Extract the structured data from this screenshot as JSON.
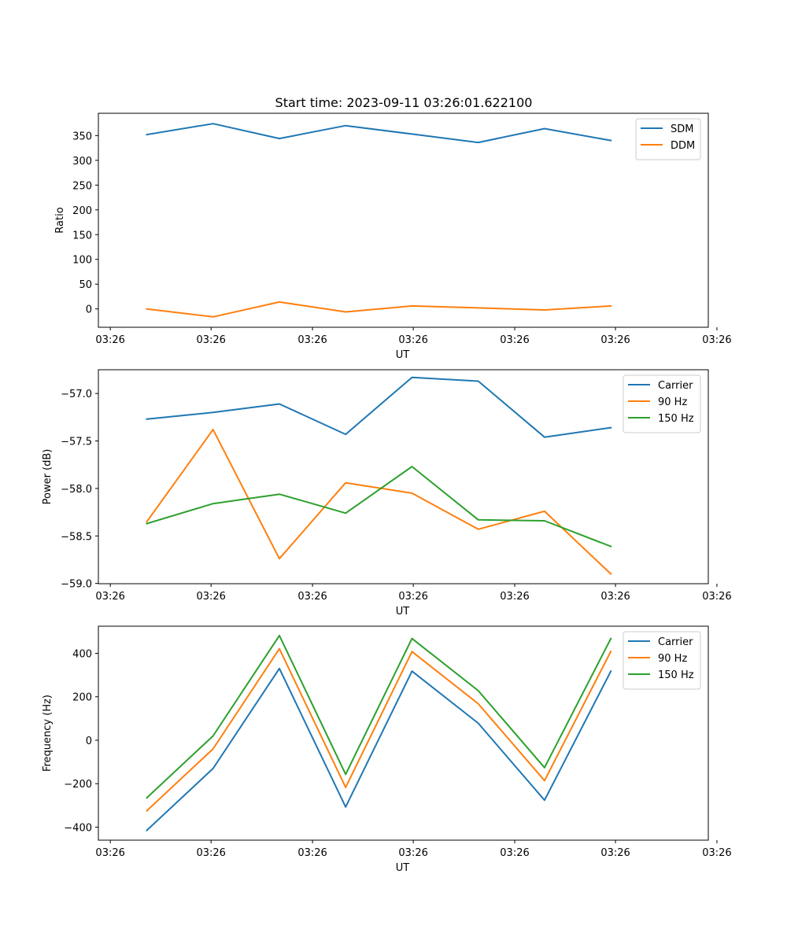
{
  "figure_title": "Start time: 2023-09-11 03:26:01.622100",
  "colors": {
    "blue": "#1f77b4",
    "orange": "#ff7f0e",
    "green": "#2ca02c"
  },
  "chart_data": [
    {
      "type": "line",
      "title": "Start time: 2023-09-11 03:26:01.622100",
      "xlabel": "UT",
      "ylabel": "Ratio",
      "x": [
        1,
        2,
        3,
        4,
        5,
        6,
        7,
        8
      ],
      "xlim": [
        0.27,
        9.47
      ],
      "xticks": [
        0.45,
        1.97,
        3.5,
        5.02,
        6.55,
        8.07,
        9.6
      ],
      "xtick_labels": [
        "03:26",
        "03:26",
        "03:26",
        "03:26",
        "03:26",
        "03:26",
        "03:26"
      ],
      "ylim": [
        -37,
        395
      ],
      "yticks": [
        0,
        50,
        100,
        150,
        200,
        250,
        300,
        350
      ],
      "ytick_labels": [
        "0",
        "50",
        "100",
        "150",
        "200",
        "250",
        "300",
        "350"
      ],
      "legend": "top-right",
      "series": [
        {
          "name": "SDM",
          "color": "#1f77b4",
          "values": [
            352,
            374,
            344,
            370,
            353,
            336,
            364,
            340
          ]
        },
        {
          "name": "DDM",
          "color": "#ff7f0e",
          "values": [
            0,
            -16,
            14,
            -6,
            6,
            2,
            -2,
            6
          ]
        }
      ]
    },
    {
      "type": "line",
      "title": "",
      "xlabel": "UT",
      "ylabel": "Power (dB)",
      "x": [
        1,
        2,
        3,
        4,
        5,
        6,
        7,
        8
      ],
      "xlim": [
        0.27,
        9.47
      ],
      "xticks": [
        0.45,
        1.97,
        3.5,
        5.02,
        6.55,
        8.07,
        9.6
      ],
      "xtick_labels": [
        "03:26",
        "03:26",
        "03:26",
        "03:26",
        "03:26",
        "03:26",
        "03:26"
      ],
      "ylim": [
        -59.003,
        -56.75
      ],
      "yticks": [
        -59.0,
        -58.5,
        -58.0,
        -57.5,
        -57.0
      ],
      "ytick_labels": [
        "−59.0",
        "−58.5",
        "−58.0",
        "−57.5",
        "−57.0"
      ],
      "legend": "top-right",
      "series": [
        {
          "name": "Carrier",
          "color": "#1f77b4",
          "values": [
            -57.27,
            -57.2,
            -57.11,
            -57.43,
            -56.83,
            -56.87,
            -57.46,
            -57.36
          ]
        },
        {
          "name": "90 Hz",
          "color": "#ff7f0e",
          "values": [
            -58.35,
            -57.38,
            -58.74,
            -57.94,
            -58.05,
            -58.43,
            -58.24,
            -58.9
          ]
        },
        {
          "name": "150 Hz",
          "color": "#2ca02c",
          "values": [
            -58.37,
            -58.16,
            -58.06,
            -58.26,
            -57.77,
            -58.33,
            -58.34,
            -58.61
          ]
        }
      ]
    },
    {
      "type": "line",
      "title": "",
      "xlabel": "UT",
      "ylabel": "Frequency (Hz)",
      "x": [
        1,
        2,
        3,
        4,
        5,
        6,
        7,
        8
      ],
      "xlim": [
        0.27,
        9.47
      ],
      "xticks": [
        0.45,
        1.97,
        3.5,
        5.02,
        6.55,
        8.07,
        9.6
      ],
      "xtick_labels": [
        "03:26",
        "03:26",
        "03:26",
        "03:26",
        "03:26",
        "03:26",
        "03:26"
      ],
      "ylim": [
        -460,
        525
      ],
      "yticks": [
        -400,
        -200,
        0,
        200,
        400
      ],
      "ytick_labels": [
        "−400",
        "−200",
        "0",
        "200",
        "400"
      ],
      "legend": "top-right",
      "series": [
        {
          "name": "Carrier",
          "color": "#1f77b4",
          "values": [
            -415,
            -130,
            330,
            -307,
            318,
            78,
            -276,
            318
          ]
        },
        {
          "name": "90 Hz",
          "color": "#ff7f0e",
          "values": [
            -325,
            -40,
            421,
            -217,
            408,
            168,
            -186,
            409
          ]
        },
        {
          "name": "150 Hz",
          "color": "#2ca02c",
          "values": [
            -265,
            20,
            482,
            -157,
            468,
            228,
            -126,
            468
          ]
        }
      ]
    }
  ]
}
